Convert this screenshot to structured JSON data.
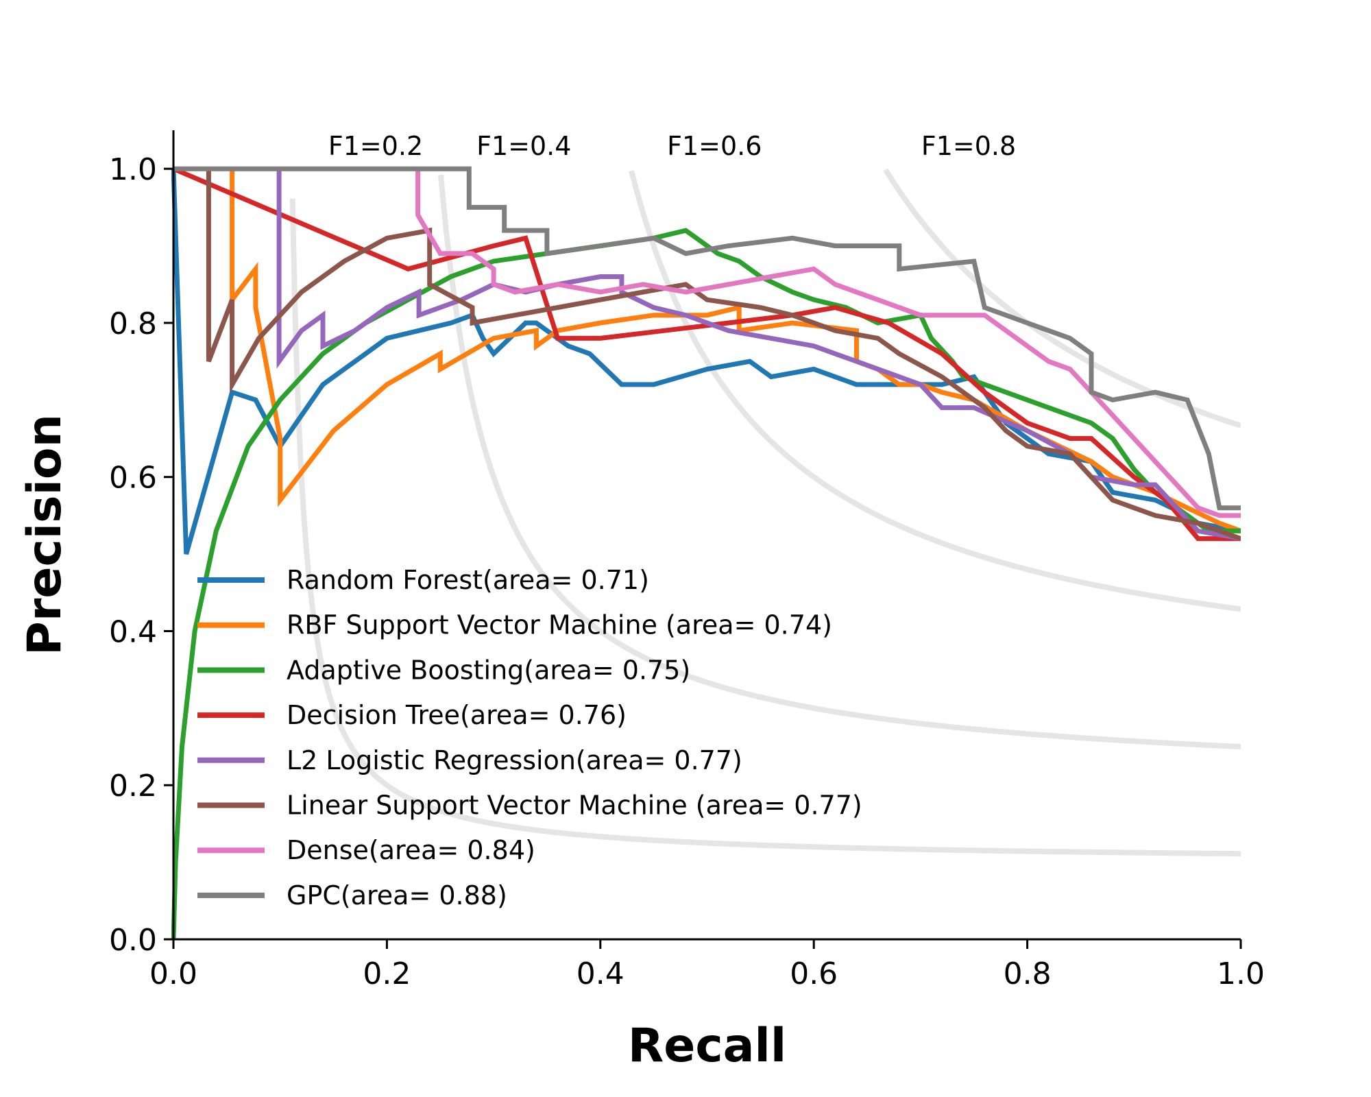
{
  "chart_data": {
    "type": "line",
    "xlabel": "Recall",
    "ylabel": "Precision",
    "xlim": [
      0.0,
      1.0
    ],
    "ylim": [
      0.0,
      1.05
    ],
    "xticks": [
      "0.0",
      "0.2",
      "0.4",
      "0.6",
      "0.8",
      "1.0"
    ],
    "yticks": [
      "0.0",
      "0.2",
      "0.4",
      "0.6",
      "0.8",
      "1.0"
    ],
    "grid": false,
    "legend_position": "lower-left",
    "iso_f1": {
      "color": "#e5e5e5",
      "curves": [
        {
          "f1": 0.2,
          "label": "F1=0.2"
        },
        {
          "f1": 0.4,
          "label": "F1=0.4"
        },
        {
          "f1": 0.6,
          "label": "F1=0.6"
        },
        {
          "f1": 0.8,
          "label": "F1=0.8"
        }
      ]
    },
    "series": [
      {
        "name": "Random Forest(area= 0.71)",
        "color": "#1f77b4",
        "points": [
          [
            0.0,
            1.0
          ],
          [
            0.012,
            0.5
          ],
          [
            0.055,
            0.71
          ],
          [
            0.077,
            0.7
          ],
          [
            0.1,
            0.64
          ],
          [
            0.14,
            0.72
          ],
          [
            0.18,
            0.76
          ],
          [
            0.2,
            0.78
          ],
          [
            0.23,
            0.79
          ],
          [
            0.26,
            0.8
          ],
          [
            0.28,
            0.81
          ],
          [
            0.29,
            0.78
          ],
          [
            0.3,
            0.76
          ],
          [
            0.33,
            0.8
          ],
          [
            0.34,
            0.8
          ],
          [
            0.37,
            0.77
          ],
          [
            0.39,
            0.76
          ],
          [
            0.42,
            0.72
          ],
          [
            0.45,
            0.72
          ],
          [
            0.5,
            0.74
          ],
          [
            0.54,
            0.75
          ],
          [
            0.56,
            0.73
          ],
          [
            0.6,
            0.74
          ],
          [
            0.64,
            0.72
          ],
          [
            0.68,
            0.72
          ],
          [
            0.72,
            0.72
          ],
          [
            0.75,
            0.73
          ],
          [
            0.78,
            0.67
          ],
          [
            0.8,
            0.65
          ],
          [
            0.82,
            0.63
          ],
          [
            0.86,
            0.62
          ],
          [
            0.88,
            0.58
          ],
          [
            0.92,
            0.57
          ],
          [
            0.95,
            0.55
          ],
          [
            0.96,
            0.54
          ],
          [
            1.0,
            0.53
          ]
        ]
      },
      {
        "name": "RBF Support Vector Machine (area= 0.74)",
        "color": "#ff7f0e",
        "points": [
          [
            0.055,
            1.0
          ],
          [
            0.055,
            0.83
          ],
          [
            0.077,
            0.87
          ],
          [
            0.077,
            0.82
          ],
          [
            0.1,
            0.65
          ],
          [
            0.1,
            0.57
          ],
          [
            0.15,
            0.66
          ],
          [
            0.2,
            0.72
          ],
          [
            0.25,
            0.76
          ],
          [
            0.25,
            0.74
          ],
          [
            0.3,
            0.78
          ],
          [
            0.34,
            0.79
          ],
          [
            0.34,
            0.77
          ],
          [
            0.36,
            0.79
          ],
          [
            0.4,
            0.8
          ],
          [
            0.45,
            0.81
          ],
          [
            0.5,
            0.81
          ],
          [
            0.53,
            0.82
          ],
          [
            0.53,
            0.79
          ],
          [
            0.58,
            0.8
          ],
          [
            0.64,
            0.79
          ],
          [
            0.64,
            0.75
          ],
          [
            0.66,
            0.74
          ],
          [
            0.68,
            0.72
          ],
          [
            0.7,
            0.72
          ],
          [
            0.72,
            0.71
          ],
          [
            0.75,
            0.7
          ],
          [
            0.8,
            0.66
          ],
          [
            0.83,
            0.64
          ],
          [
            0.86,
            0.62
          ],
          [
            0.88,
            0.6
          ],
          [
            0.92,
            0.58
          ],
          [
            0.95,
            0.56
          ],
          [
            0.98,
            0.54
          ],
          [
            1.0,
            0.53
          ]
        ]
      },
      {
        "name": "Adaptive Boosting(area= 0.75)",
        "color": "#2ca02c",
        "points": [
          [
            0.0,
            0.0
          ],
          [
            0.002,
            0.1
          ],
          [
            0.008,
            0.25
          ],
          [
            0.02,
            0.4
          ],
          [
            0.04,
            0.53
          ],
          [
            0.07,
            0.64
          ],
          [
            0.1,
            0.7
          ],
          [
            0.14,
            0.76
          ],
          [
            0.18,
            0.8
          ],
          [
            0.22,
            0.83
          ],
          [
            0.26,
            0.86
          ],
          [
            0.3,
            0.88
          ],
          [
            0.35,
            0.89
          ],
          [
            0.4,
            0.9
          ],
          [
            0.45,
            0.91
          ],
          [
            0.48,
            0.92
          ],
          [
            0.51,
            0.89
          ],
          [
            0.53,
            0.88
          ],
          [
            0.55,
            0.86
          ],
          [
            0.58,
            0.84
          ],
          [
            0.6,
            0.83
          ],
          [
            0.63,
            0.82
          ],
          [
            0.66,
            0.8
          ],
          [
            0.7,
            0.81
          ],
          [
            0.71,
            0.78
          ],
          [
            0.73,
            0.75
          ],
          [
            0.74,
            0.73
          ],
          [
            0.78,
            0.71
          ],
          [
            0.82,
            0.69
          ],
          [
            0.86,
            0.67
          ],
          [
            0.88,
            0.65
          ],
          [
            0.9,
            0.61
          ],
          [
            0.92,
            0.58
          ],
          [
            0.95,
            0.55
          ],
          [
            0.97,
            0.53
          ],
          [
            1.0,
            0.53
          ]
        ]
      },
      {
        "name": "Decision Tree(area= 0.76)",
        "color": "#d62728",
        "points": [
          [
            0.0,
            1.0
          ],
          [
            0.22,
            0.87
          ],
          [
            0.3,
            0.9
          ],
          [
            0.33,
            0.91
          ],
          [
            0.36,
            0.78
          ],
          [
            0.4,
            0.78
          ],
          [
            0.46,
            0.79
          ],
          [
            0.52,
            0.8
          ],
          [
            0.58,
            0.81
          ],
          [
            0.62,
            0.82
          ],
          [
            0.67,
            0.8
          ],
          [
            0.72,
            0.76
          ],
          [
            0.76,
            0.71
          ],
          [
            0.8,
            0.67
          ],
          [
            0.84,
            0.65
          ],
          [
            0.86,
            0.65
          ],
          [
            0.9,
            0.6
          ],
          [
            0.93,
            0.57
          ],
          [
            0.96,
            0.52
          ],
          [
            1.0,
            0.52
          ]
        ]
      },
      {
        "name": "L2 Logistic Regression(area= 0.77)",
        "color": "#9467bd",
        "points": [
          [
            0.099,
            1.0
          ],
          [
            0.099,
            0.75
          ],
          [
            0.12,
            0.79
          ],
          [
            0.14,
            0.81
          ],
          [
            0.14,
            0.77
          ],
          [
            0.17,
            0.79
          ],
          [
            0.2,
            0.82
          ],
          [
            0.23,
            0.84
          ],
          [
            0.23,
            0.81
          ],
          [
            0.27,
            0.83
          ],
          [
            0.3,
            0.85
          ],
          [
            0.33,
            0.84
          ],
          [
            0.36,
            0.85
          ],
          [
            0.4,
            0.86
          ],
          [
            0.42,
            0.86
          ],
          [
            0.42,
            0.84
          ],
          [
            0.45,
            0.82
          ],
          [
            0.48,
            0.81
          ],
          [
            0.52,
            0.79
          ],
          [
            0.56,
            0.78
          ],
          [
            0.6,
            0.77
          ],
          [
            0.62,
            0.76
          ],
          [
            0.64,
            0.75
          ],
          [
            0.68,
            0.73
          ],
          [
            0.7,
            0.72
          ],
          [
            0.72,
            0.69
          ],
          [
            0.75,
            0.69
          ],
          [
            0.8,
            0.66
          ],
          [
            0.84,
            0.63
          ],
          [
            0.86,
            0.6
          ],
          [
            0.9,
            0.59
          ],
          [
            0.92,
            0.59
          ],
          [
            0.94,
            0.56
          ],
          [
            0.96,
            0.53
          ],
          [
            1.0,
            0.52
          ]
        ]
      },
      {
        "name": "Linear Support Vector Machine (area= 0.77)",
        "color": "#8c564b",
        "points": [
          [
            0.033,
            1.0
          ],
          [
            0.033,
            0.75
          ],
          [
            0.055,
            0.83
          ],
          [
            0.055,
            0.72
          ],
          [
            0.08,
            0.78
          ],
          [
            0.12,
            0.84
          ],
          [
            0.16,
            0.88
          ],
          [
            0.2,
            0.91
          ],
          [
            0.24,
            0.92
          ],
          [
            0.24,
            0.85
          ],
          [
            0.28,
            0.82
          ],
          [
            0.28,
            0.8
          ],
          [
            0.32,
            0.81
          ],
          [
            0.36,
            0.82
          ],
          [
            0.4,
            0.83
          ],
          [
            0.44,
            0.84
          ],
          [
            0.48,
            0.85
          ],
          [
            0.5,
            0.83
          ],
          [
            0.55,
            0.82
          ],
          [
            0.58,
            0.81
          ],
          [
            0.62,
            0.79
          ],
          [
            0.66,
            0.78
          ],
          [
            0.68,
            0.76
          ],
          [
            0.72,
            0.73
          ],
          [
            0.76,
            0.69
          ],
          [
            0.78,
            0.66
          ],
          [
            0.8,
            0.64
          ],
          [
            0.84,
            0.63
          ],
          [
            0.86,
            0.6
          ],
          [
            0.88,
            0.57
          ],
          [
            0.9,
            0.56
          ],
          [
            0.92,
            0.55
          ],
          [
            0.96,
            0.54
          ],
          [
            1.0,
            0.52
          ]
        ]
      },
      {
        "name": "Dense(area= 0.84)",
        "color": "#e377c2",
        "points": [
          [
            0.229,
            1.0
          ],
          [
            0.229,
            0.94
          ],
          [
            0.25,
            0.89
          ],
          [
            0.28,
            0.89
          ],
          [
            0.3,
            0.87
          ],
          [
            0.3,
            0.85
          ],
          [
            0.32,
            0.84
          ],
          [
            0.36,
            0.85
          ],
          [
            0.4,
            0.84
          ],
          [
            0.44,
            0.85
          ],
          [
            0.48,
            0.84
          ],
          [
            0.52,
            0.85
          ],
          [
            0.56,
            0.86
          ],
          [
            0.6,
            0.87
          ],
          [
            0.62,
            0.85
          ],
          [
            0.66,
            0.83
          ],
          [
            0.7,
            0.81
          ],
          [
            0.72,
            0.81
          ],
          [
            0.76,
            0.81
          ],
          [
            0.78,
            0.79
          ],
          [
            0.8,
            0.77
          ],
          [
            0.82,
            0.75
          ],
          [
            0.84,
            0.74
          ],
          [
            0.86,
            0.71
          ],
          [
            0.88,
            0.68
          ],
          [
            0.9,
            0.65
          ],
          [
            0.92,
            0.62
          ],
          [
            0.94,
            0.59
          ],
          [
            0.96,
            0.56
          ],
          [
            0.98,
            0.55
          ],
          [
            1.0,
            0.55
          ]
        ]
      },
      {
        "name": "GPC(area= 0.88)",
        "color": "#7f7f7f",
        "points": [
          [
            0.0,
            1.0
          ],
          [
            0.277,
            1.0
          ],
          [
            0.277,
            0.95
          ],
          [
            0.31,
            0.95
          ],
          [
            0.31,
            0.92
          ],
          [
            0.35,
            0.92
          ],
          [
            0.35,
            0.89
          ],
          [
            0.4,
            0.9
          ],
          [
            0.45,
            0.91
          ],
          [
            0.48,
            0.89
          ],
          [
            0.52,
            0.9
          ],
          [
            0.58,
            0.91
          ],
          [
            0.62,
            0.9
          ],
          [
            0.68,
            0.9
          ],
          [
            0.68,
            0.87
          ],
          [
            0.75,
            0.88
          ],
          [
            0.76,
            0.82
          ],
          [
            0.78,
            0.81
          ],
          [
            0.8,
            0.8
          ],
          [
            0.82,
            0.79
          ],
          [
            0.84,
            0.78
          ],
          [
            0.86,
            0.76
          ],
          [
            0.86,
            0.71
          ],
          [
            0.88,
            0.7
          ],
          [
            0.92,
            0.71
          ],
          [
            0.95,
            0.7
          ],
          [
            0.97,
            0.63
          ],
          [
            0.98,
            0.56
          ],
          [
            1.0,
            0.56
          ]
        ]
      }
    ]
  }
}
